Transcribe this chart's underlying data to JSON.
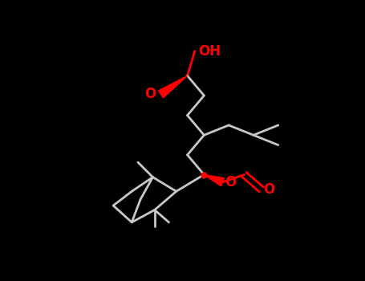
{
  "bg_color": "#000000",
  "bond_color": "#c8c8c8",
  "atom_color_O": "#ff0000",
  "linewidth": 2.0,
  "fontsize": 12,
  "figwidth": 4.55,
  "figheight": 3.5,
  "dpi": 100,
  "xlim": [
    0,
    455
  ],
  "ylim": [
    0,
    350
  ]
}
